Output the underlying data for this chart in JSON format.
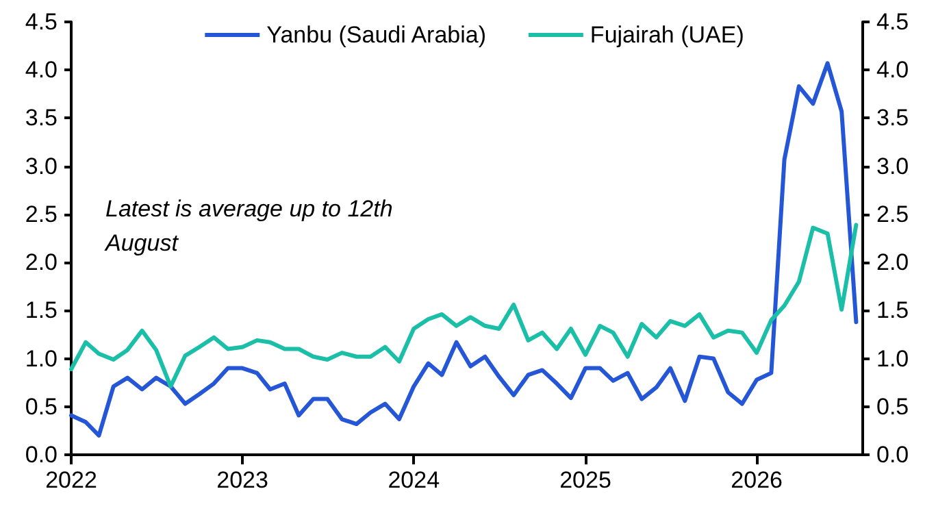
{
  "chart_data": {
    "type": "line",
    "x": [
      "2022-01",
      "2022-02",
      "2022-03",
      "2022-04",
      "2022-05",
      "2022-06",
      "2022-07",
      "2022-08",
      "2022-09",
      "2022-10",
      "2022-11",
      "2022-12",
      "2023-01",
      "2023-02",
      "2023-03",
      "2023-04",
      "2023-05",
      "2023-06",
      "2023-07",
      "2023-08",
      "2023-09",
      "2023-10",
      "2023-11",
      "2023-12",
      "2024-01",
      "2024-02",
      "2024-03",
      "2024-04",
      "2024-05",
      "2024-06",
      "2024-07",
      "2024-08",
      "2024-09",
      "2024-10",
      "2024-11",
      "2024-12",
      "2025-01",
      "2025-02",
      "2025-03",
      "2025-04",
      "2025-05",
      "2025-06",
      "2025-07",
      "2025-08",
      "2025-09",
      "2025-10",
      "2025-11",
      "2025-12",
      "2026-01",
      "2026-02",
      "2026-03",
      "2026-04",
      "2026-05",
      "2026-06",
      "2026-07",
      "2026-08"
    ],
    "series": [
      {
        "name": "Yanbu (Saudi Arabia)",
        "color": "#2456d6",
        "values": [
          0.41,
          0.34,
          0.2,
          0.71,
          0.8,
          0.68,
          0.8,
          0.71,
          0.53,
          0.63,
          0.74,
          0.9,
          0.9,
          0.85,
          0.68,
          0.74,
          0.41,
          0.58,
          0.58,
          0.37,
          0.32,
          0.44,
          0.53,
          0.37,
          0.71,
          0.95,
          0.83,
          1.17,
          0.92,
          1.02,
          0.81,
          0.62,
          0.83,
          0.88,
          0.74,
          0.59,
          0.9,
          0.9,
          0.77,
          0.85,
          0.58,
          0.7,
          0.9,
          0.56,
          1.02,
          1.0,
          0.65,
          0.53,
          0.78,
          0.85,
          3.07,
          3.83,
          3.65,
          4.07,
          3.57,
          1.38
        ]
      },
      {
        "name": "Fujairah (UAE)",
        "color": "#1bbfa8",
        "values": [
          0.89,
          1.17,
          1.05,
          0.99,
          1.09,
          1.29,
          1.09,
          0.71,
          1.03,
          1.12,
          1.22,
          1.1,
          1.12,
          1.19,
          1.17,
          1.1,
          1.1,
          1.02,
          0.99,
          1.06,
          1.02,
          1.02,
          1.12,
          0.97,
          1.31,
          1.41,
          1.46,
          1.34,
          1.43,
          1.34,
          1.31,
          1.56,
          1.19,
          1.27,
          1.1,
          1.31,
          1.04,
          1.34,
          1.27,
          1.02,
          1.36,
          1.22,
          1.39,
          1.34,
          1.46,
          1.22,
          1.29,
          1.27,
          1.06,
          1.4,
          1.55,
          1.8,
          2.36,
          2.3,
          1.51,
          2.39
        ]
      }
    ],
    "xlim": [
      "2022-01",
      "2026-08-15"
    ],
    "xticks": [
      "2022",
      "2023",
      "2024",
      "2025",
      "2026"
    ],
    "ylim": [
      0,
      4.5
    ],
    "yticks": [
      {
        "value": 0,
        "label": "0.0"
      },
      {
        "value": 0.5,
        "label": "0.5"
      },
      {
        "value": 1,
        "label": "1.0"
      },
      {
        "value": 1.5,
        "label": "1.5"
      },
      {
        "value": 2,
        "label": "2.0"
      },
      {
        "value": 2.5,
        "label": "2.5"
      },
      {
        "value": 3,
        "label": "3.0"
      },
      {
        "value": 3.5,
        "label": "3.5"
      },
      {
        "value": 4,
        "label": "4.0"
      },
      {
        "value": 4.5,
        "label": "4.5"
      }
    ],
    "y2lim": [
      0,
      4.5
    ],
    "y2ticks": [
      {
        "value": 0,
        "label": "0.0"
      },
      {
        "value": 0.5,
        "label": "0.5"
      },
      {
        "value": 1,
        "label": "1.0"
      },
      {
        "value": 1.5,
        "label": "1.5"
      },
      {
        "value": 2,
        "label": "2.0"
      },
      {
        "value": 2.5,
        "label": "2.5"
      },
      {
        "value": 3,
        "label": "3.0"
      },
      {
        "value": 3.5,
        "label": "3.5"
      },
      {
        "value": 4,
        "label": "4.0"
      },
      {
        "value": 4.5,
        "label": "4.5"
      }
    ],
    "annotations": [
      "Latest is average up to 12th August"
    ],
    "legend": "top",
    "grid": false,
    "marker": "none",
    "line_style": "solid"
  }
}
